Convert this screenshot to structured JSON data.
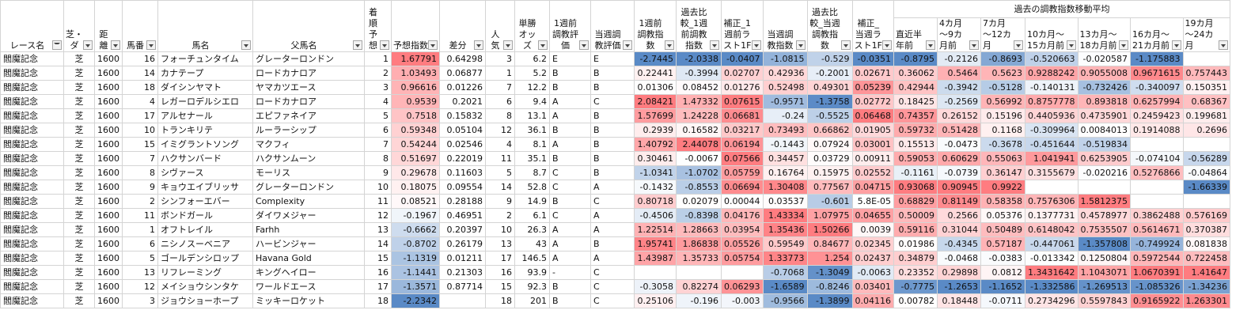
{
  "headers_top": {
    "past_avg_group": "過去の調教指数移動平均"
  },
  "headers": [
    {
      "label": "レース名",
      "filter_active": true
    },
    {
      "label": "芝・ダ"
    },
    {
      "label": "距離"
    },
    {
      "label": "馬番"
    },
    {
      "label": "馬名"
    },
    {
      "label": "父馬名"
    },
    {
      "label": "着順予想"
    },
    {
      "label": "予想指数"
    },
    {
      "label": "差分"
    },
    {
      "label": "人気"
    },
    {
      "label": "単勝オッズ"
    },
    {
      "label": "1週前調教評価"
    },
    {
      "label": "当週調教評価"
    },
    {
      "label": "1週前調教指数"
    },
    {
      "label": "過去比較_1週前調教指数"
    },
    {
      "label": "補正_1週前ラスト1F"
    },
    {
      "label": "当週調教指数"
    },
    {
      "label": "過去比較_当週調教指数"
    },
    {
      "label": "補正_当週ラスト1F"
    },
    {
      "label": "直近半年前"
    },
    {
      "label": "4カ月～9カ月前"
    },
    {
      "label": "7カ月～12カ月"
    },
    {
      "label": "10カ月～15カ月前"
    },
    {
      "label": "13カ月～18カ月前"
    },
    {
      "label": "16カ月～21カ月前"
    },
    {
      "label": "19カ月～24カ月"
    }
  ],
  "rows": [
    [
      "閻魔記念",
      "芝",
      "1600",
      "16",
      "フォーチュンタイム",
      "グレーターロンドン",
      "1",
      "1.67791",
      "0.64298",
      "3",
      "6.2",
      "E",
      "E",
      "-2.7445",
      "-2.0338",
      "-0.0407",
      "-1.0815",
      "-0.529",
      "-0.0351",
      "-0.8795",
      "-0.2126",
      "-0.8693",
      "-0.520663",
      "-0.020587",
      "-1.175883",
      ""
    ],
    [
      "閻魔記念",
      "芝",
      "1600",
      "14",
      "カナテープ",
      "ロードカナロア",
      "2",
      "1.03493",
      "0.06877",
      "1",
      "5.2",
      "B",
      "B",
      "0.22441",
      "-0.3994",
      "0.02707",
      "0.42936",
      "-0.2001",
      "0.02671",
      "0.36062",
      "0.5464",
      "0.5623",
      "0.9288242",
      "0.9055008",
      "0.9671615",
      "0.757443"
    ],
    [
      "閻魔記念",
      "芝",
      "1600",
      "18",
      "ダイシンヤマト",
      "ヤマカツエース",
      "3",
      "0.96616",
      "0.01226",
      "7",
      "12.2",
      "B",
      "B",
      "0.01306",
      "0.08452",
      "0.01276",
      "0.52498",
      "0.49301",
      "0.05239",
      "0.42944",
      "-0.3942",
      "-0.5128",
      "-0.140131",
      "-0.732426",
      "-0.340097",
      "0.150351"
    ],
    [
      "閻魔記念",
      "芝",
      "1600",
      "4",
      "レガーロデルシエロ",
      "ロードカナロア",
      "4",
      "0.9539",
      "0.2021",
      "6",
      "9.4",
      "A",
      "C",
      "2.08421",
      "1.47332",
      "0.07615",
      "-0.9571",
      "-1.3758",
      "0.02772",
      "0.18425",
      "-0.2569",
      "0.56992",
      "0.8757778",
      "0.893818",
      "0.6257994",
      "0.68367"
    ],
    [
      "閻魔記念",
      "芝",
      "1600",
      "17",
      "アルセナール",
      "エピファネイア",
      "5",
      "0.7518",
      "0.15832",
      "8",
      "13.1",
      "A",
      "B",
      "1.57699",
      "1.24228",
      "0.06681",
      "-0.24",
      "-0.5525",
      "0.06468",
      "0.74357",
      "0.26152",
      "0.15196",
      "0.4405936",
      "0.4735901",
      "0.2459423",
      "0.199681"
    ],
    [
      "閻魔記念",
      "芝",
      "1600",
      "10",
      "トランキリテ",
      "ルーラーシップ",
      "6",
      "0.59348",
      "0.05104",
      "12",
      "36.1",
      "B",
      "B",
      "0.2939",
      "0.16582",
      "0.03217",
      "0.73493",
      "0.66862",
      "0.01905",
      "0.59732",
      "0.51428",
      "0.1168",
      "-0.309964",
      "0.0084013",
      "0.1914088",
      "0.2696"
    ],
    [
      "閻魔記念",
      "芝",
      "1600",
      "15",
      "イミグラントソング",
      "マクフィ",
      "7",
      "0.54244",
      "0.02546",
      "4",
      "8.1",
      "A",
      "B",
      "1.40792",
      "2.44078",
      "0.06194",
      "-0.1443",
      "0.07924",
      "0.03001",
      "0.15513",
      "-0.0473",
      "-0.3678",
      "-0.451644",
      "-0.519834",
      "",
      ""
    ],
    [
      "閻魔記念",
      "芝",
      "1600",
      "7",
      "ハクサンバード",
      "ハクサンムーン",
      "8",
      "0.51697",
      "0.22019",
      "11",
      "35.1",
      "B",
      "B",
      "0.30461",
      "-0.0067",
      "0.07566",
      "0.34457",
      "0.03729",
      "0.00911",
      "0.59053",
      "0.60629",
      "0.55063",
      "1.041941",
      "0.6253905",
      "-0.074104",
      "-0.56289"
    ],
    [
      "閻魔記念",
      "芝",
      "1600",
      "8",
      "シヴァース",
      "モーリス",
      "9",
      "0.29678",
      "0.11603",
      "5",
      "8.7",
      "C",
      "B",
      "-1.0341",
      "-1.0702",
      "0.05759",
      "0.16764",
      "0.15975",
      "0.02552",
      "-0.1161",
      "-0.0739",
      "0.36147",
      "0.3155679",
      "-0.020216",
      "0.5276866",
      "-0.04864"
    ],
    [
      "閻魔記念",
      "芝",
      "1600",
      "9",
      "キョウエイブリッサ",
      "グレーターロンドン",
      "10",
      "0.18075",
      "0.09554",
      "14",
      "52.8",
      "C",
      "A",
      "-0.1432",
      "-0.8553",
      "0.06694",
      "1.30408",
      "0.77567",
      "0.04715",
      "0.93068",
      "0.90945",
      "0.9922",
      "",
      "",
      "",
      "-1.66339"
    ],
    [
      "閻魔記念",
      "芝",
      "1600",
      "2",
      "シンフォーエバー",
      "Complexity",
      "11",
      "0.08521",
      "0.28188",
      "9",
      "14.9",
      "B",
      "C",
      "0.80718",
      "0.02079",
      "0.00044",
      "0.03537",
      "-0.601",
      "5.8E-05",
      "0.68829",
      "0.81149",
      "0.58358",
      "0.7576306",
      "1.5812375",
      "",
      ""
    ],
    [
      "閻魔記念",
      "芝",
      "1600",
      "11",
      "ボンドガール",
      "ダイワメジャー",
      "12",
      "-0.1967",
      "0.46951",
      "2",
      "6.1",
      "C",
      "A",
      "-0.4506",
      "-0.8398",
      "0.04176",
      "1.43334",
      "1.07975",
      "0.04655",
      "0.50009",
      "0.2566",
      "0.05376",
      "0.1377731",
      "0.4578977",
      "0.3862488",
      "0.576169"
    ],
    [
      "閻魔記念",
      "芝",
      "1600",
      "1",
      "オフトレイル",
      "Farhh",
      "13",
      "-0.6662",
      "0.20397",
      "10",
      "26.3",
      "A",
      "A",
      "1.22514",
      "1.28663",
      "0.03954",
      "1.35436",
      "1.50266",
      "0.0039",
      "0.59116",
      "0.31044",
      "0.50489",
      "0.6148042",
      "0.7535507",
      "0.5614671",
      "0.370387"
    ],
    [
      "閻魔記念",
      "芝",
      "1600",
      "6",
      "ニシノスーベニア",
      "ハービンジャー",
      "14",
      "-0.8702",
      "0.26179",
      "13",
      "43",
      "A",
      "B",
      "1.95741",
      "1.86838",
      "0.05526",
      "0.59549",
      "0.84677",
      "0.02345",
      "0.01986",
      "-0.4345",
      "0.57187",
      "-0.447061",
      "-1.357808",
      "-0.749924",
      "0.081838"
    ],
    [
      "閻魔記念",
      "芝",
      "1600",
      "5",
      "ゴールデンシロップ",
      "Havana Gold",
      "15",
      "-1.1319",
      "0.01211",
      "17",
      "146.5",
      "A",
      "A",
      "1.43987",
      "1.35733",
      "0.05754",
      "1.33773",
      "1.254",
      "0.02437",
      "0.34879",
      "-0.0468",
      "-0.0383",
      "-0.013342",
      "0.1250804",
      "0.5972544",
      "0.722458"
    ],
    [
      "閻魔記念",
      "芝",
      "1600",
      "13",
      "リフレーミング",
      "キングヘイロー",
      "16",
      "-1.1441",
      "0.21303",
      "16",
      "93.9",
      "-",
      "C",
      "",
      "",
      "",
      "-0.7068",
      "-1.3049",
      "-0.0063",
      "0.23352",
      "0.29898",
      "0.0812",
      "1.3431642",
      "1.1043071",
      "1.0670391",
      "1.41647"
    ],
    [
      "閻魔記念",
      "芝",
      "1600",
      "12",
      "メイショウシンタケ",
      "ワールドエース",
      "17",
      "-1.3571",
      "0.87714",
      "15",
      "92.3",
      "B",
      "C",
      "-0.3058",
      "0.82274",
      "0.06293",
      "-1.6589",
      "-0.8246",
      "0.03401",
      "-0.7775",
      "-1.2653",
      "-1.1652",
      "-1.332586",
      "-1.269513",
      "-1.085326",
      "-1.34236"
    ],
    [
      "閻魔記念",
      "芝",
      "1600",
      "3",
      "ジョウショーホープ",
      "ミッキーロケット",
      "18",
      "-2.2342",
      "",
      "18",
      "201",
      "B",
      "C",
      "0.25106",
      "-0.196",
      "-0.003",
      "-0.9566",
      "-1.3899",
      "0.04116",
      "0.00782",
      "0.18448",
      "-0.0711",
      "0.2734296",
      "0.5597843",
      "0.9165922",
      "1.263301"
    ]
  ]
}
